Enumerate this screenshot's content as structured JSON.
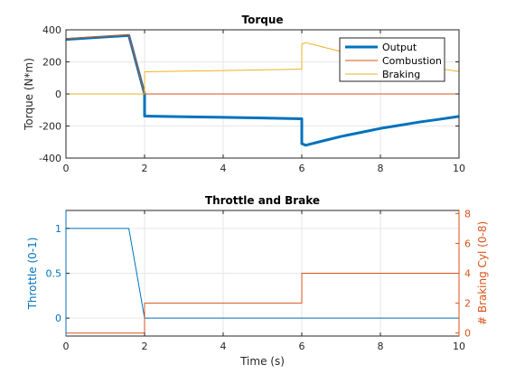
{
  "chart_data": [
    {
      "type": "line",
      "title": "Torque",
      "xlabel": "",
      "ylabel": "Torque (N*m)",
      "xlim": [
        0,
        10
      ],
      "ylim": [
        -400,
        400
      ],
      "xticks": [
        0,
        2,
        4,
        6,
        8,
        10
      ],
      "yticks": [
        -400,
        -200,
        0,
        200,
        400
      ],
      "xtick_labels": [
        "0",
        "2",
        "4",
        "6",
        "8",
        "10"
      ],
      "ytick_labels": [
        "-400",
        "-200",
        "0",
        "200",
        "400"
      ],
      "grid": true,
      "legend_position": "top-right",
      "series": [
        {
          "name": "Output",
          "color": "#0072BD",
          "line_width": "thick",
          "x": [
            0,
            1.6,
            2.0,
            2.0,
            3.0,
            4.0,
            5.0,
            6.0,
            6.0,
            6.1,
            6.5,
            7.0,
            7.5,
            8.0,
            8.5,
            9.0,
            9.5,
            10.0
          ],
          "y": [
            340,
            365,
            0,
            -138,
            -142,
            -146,
            -150,
            -155,
            -310,
            -320,
            -295,
            -265,
            -240,
            -215,
            -195,
            -175,
            -158,
            -140
          ]
        },
        {
          "name": "Combustion",
          "color": "#D95319",
          "line_width": "thin",
          "x": [
            0,
            1.6,
            2.0,
            10.0
          ],
          "y": [
            345,
            368,
            0,
            0
          ]
        },
        {
          "name": "Braking",
          "color": "#EDB120",
          "line_width": "thin",
          "x": [
            0,
            2.0,
            2.0,
            3.0,
            4.0,
            5.0,
            6.0,
            6.0,
            6.1,
            6.5,
            7.0,
            7.5,
            8.0,
            8.5,
            9.0,
            9.5,
            10.0
          ],
          "y": [
            0,
            0,
            138,
            142,
            146,
            150,
            155,
            310,
            320,
            295,
            265,
            240,
            215,
            195,
            175,
            158,
            140
          ]
        }
      ]
    },
    {
      "type": "line",
      "title": "Throttle and Brake",
      "xlabel": "Time (s)",
      "ylabel": "Throttle (0-1)",
      "ylabel_right": "# Braking Cyl (0-8)",
      "xlim": [
        0,
        10
      ],
      "ylim": [
        -0.2,
        1.2
      ],
      "ylim_right": [
        -0.2,
        8.2
      ],
      "xticks": [
        0,
        2,
        4,
        6,
        8,
        10
      ],
      "yticks": [
        0,
        0.5,
        1
      ],
      "yticks_right": [
        0,
        2,
        4,
        6,
        8
      ],
      "xtick_labels": [
        "0",
        "2",
        "4",
        "6",
        "8",
        "10"
      ],
      "ytick_labels": [
        "0",
        "0.5",
        "1"
      ],
      "ytick_labels_right": [
        "0",
        "2",
        "4",
        "6",
        "8"
      ],
      "grid": true,
      "series": [
        {
          "axis": "left",
          "color": "#0072BD",
          "x": [
            0,
            1.6,
            2.0,
            10.0
          ],
          "y": [
            1.0,
            1.0,
            0.0,
            0.0
          ]
        },
        {
          "axis": "right",
          "color": "#D95319",
          "x": [
            0,
            2.0,
            2.0,
            6.0,
            6.0,
            10.0
          ],
          "y": [
            0,
            0,
            2,
            2,
            4,
            4
          ]
        }
      ]
    }
  ]
}
